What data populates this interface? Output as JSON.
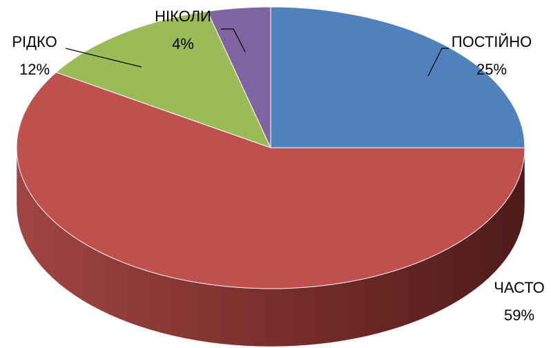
{
  "chart_data": {
    "type": "pie",
    "categories": [
      "ПОСТІЙНО",
      "ЧАСТО",
      "РІДКО",
      "НІКОЛИ"
    ],
    "values": [
      25,
      59,
      12,
      4
    ],
    "value_labels": [
      "25%",
      "59%",
      "12%",
      "4%"
    ],
    "colors": [
      "#4f81bd",
      "#c0504d",
      "#9bbb59",
      "#8064a2"
    ]
  }
}
